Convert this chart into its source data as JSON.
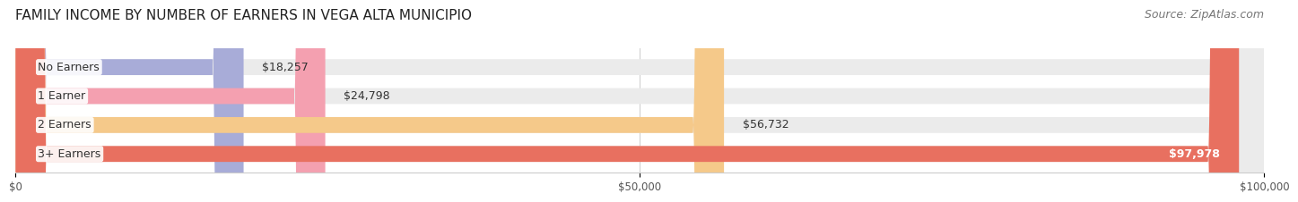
{
  "title": "FAMILY INCOME BY NUMBER OF EARNERS IN VEGA ALTA MUNICIPIO",
  "source": "Source: ZipAtlas.com",
  "categories": [
    "No Earners",
    "1 Earner",
    "2 Earners",
    "3+ Earners"
  ],
  "values": [
    18257,
    24798,
    56732,
    97978
  ],
  "labels": [
    "$18,257",
    "$24,798",
    "$56,732",
    "$97,978"
  ],
  "bar_colors": [
    "#a8acd8",
    "#f4a0b0",
    "#f5c98a",
    "#e87060"
  ],
  "bar_bg_color": "#ebebeb",
  "xlim": [
    0,
    100000
  ],
  "xtick_labels": [
    "$0",
    "$50,000",
    "$100,000"
  ],
  "xtick_values": [
    0,
    50000,
    100000
  ],
  "title_fontsize": 11,
  "source_fontsize": 9,
  "label_fontsize": 9,
  "cat_fontsize": 9,
  "background_color": "#ffffff",
  "bar_height": 0.55
}
